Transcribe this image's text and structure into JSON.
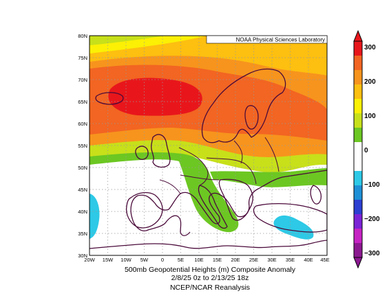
{
  "credit": "NOAA Physical Sciences Laboratory",
  "title_line1": "500mb Geopotential Heights (m)    Composite Anomaly",
  "title_line2": "2/8/25 0z  to 2/13/25 18z",
  "subtitle": "NCEP/NCAR Reanalysis",
  "lat_ticks": [
    "80N",
    "75N",
    "70N",
    "65N",
    "60N",
    "55N",
    "50N",
    "45N",
    "40N",
    "35N",
    "30N"
  ],
  "lon_ticks": [
    "20W",
    "15W",
    "10W",
    "5W",
    "0",
    "5E",
    "10E",
    "15E",
    "20E",
    "25E",
    "30E",
    "35E",
    "40E",
    "45E"
  ],
  "colorbar": {
    "ticks": [
      "300",
      "200",
      "100",
      "0",
      "−100",
      "−200",
      "−300"
    ],
    "colors": [
      "#e8161b",
      "#f26522",
      "#f7941d",
      "#fdbf10",
      "#fcf005",
      "#c7e01a",
      "#6cc722",
      "#ffffff",
      "#ffffff",
      "#2dc9e6",
      "#1e90d6",
      "#2b3fd1",
      "#7b23d6",
      "#c623c4",
      "#8b1890"
    ]
  },
  "map_colors": {
    "p300": "#e8161b",
    "p250": "#f26522",
    "p200": "#f7941d",
    "p150": "#fdbf10",
    "p100": "#fcf005",
    "p75": "#c7e01a",
    "p50": "#6cc722",
    "n50": "#2dc9e6",
    "coast": "#4a0a3a"
  }
}
